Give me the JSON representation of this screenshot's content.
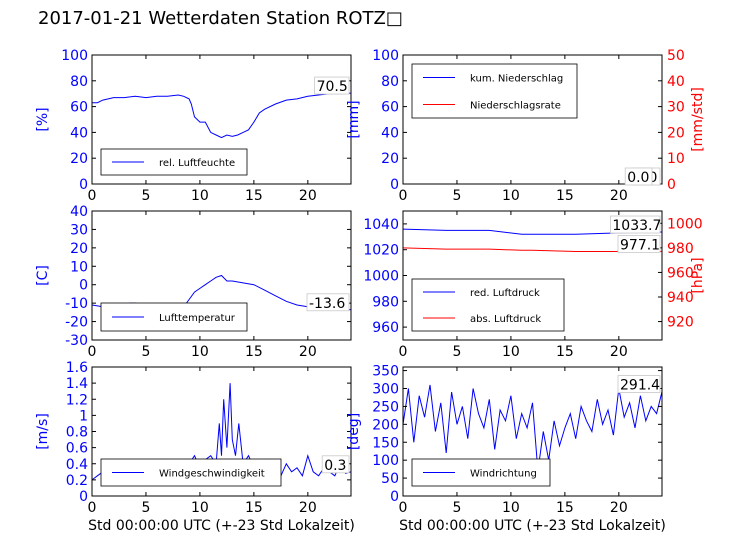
{
  "title": "2017-01-21 Wetterdaten Station ROTZ□",
  "colors": {
    "primary": "#0000ff",
    "secondary": "#ff0000",
    "light": "#8080ff"
  },
  "x_caption": "Std 00:00:00 UTC (+-23 Std Lokalzeit)",
  "chart_data": [
    {
      "id": "humidity",
      "type": "line",
      "xlim": [
        0,
        24
      ],
      "xticks": [
        0,
        5,
        10,
        15,
        20
      ],
      "ylim": [
        0,
        100
      ],
      "yticks": [
        0,
        20,
        40,
        60,
        80,
        100
      ],
      "ylabel": "[%]",
      "legend_position": "lower-left",
      "last_value": "70.5",
      "series": [
        {
          "name": "rel. Luftfeuchte",
          "color": "#0000ff",
          "x": [
            0,
            0.5,
            1,
            2,
            3,
            4,
            5,
            6,
            7,
            8,
            8.5,
            9,
            9.2,
            9.5,
            10,
            10.5,
            11,
            11.5,
            12,
            12.5,
            13,
            13.5,
            14,
            14.5,
            15,
            15.5,
            16,
            17,
            18,
            19,
            20,
            21,
            22,
            23,
            24
          ],
          "y": [
            63,
            63,
            65,
            67,
            67,
            68,
            67,
            68,
            68,
            69,
            68,
            66,
            62,
            52,
            48,
            48,
            40,
            38,
            36,
            38,
            37,
            38,
            40,
            42,
            48,
            55,
            58,
            62,
            65,
            66,
            68,
            69,
            70,
            70,
            70.5
          ]
        }
      ]
    },
    {
      "id": "precipitation",
      "type": "line",
      "xlim": [
        0,
        24
      ],
      "xticks": [
        0,
        5,
        10,
        15,
        20
      ],
      "ylim": [
        0,
        100
      ],
      "yticks": [
        0,
        20,
        40,
        60,
        80,
        100
      ],
      "ylabel": "[mm]",
      "y2lim": [
        0,
        50
      ],
      "y2ticks": [
        0,
        10,
        20,
        30,
        40,
        50
      ],
      "y2label": "[mm/std]",
      "legend_position": "top-left",
      "last_value": "0.0",
      "last_value_2": "0.0",
      "series": [
        {
          "name": "kum. Niederschlag",
          "color": "#0000ff",
          "axis": "left",
          "x": [
            0,
            24
          ],
          "y": [
            0,
            0
          ]
        },
        {
          "name": "Niederschlagsrate",
          "color": "#ff0000",
          "axis": "right",
          "x": [
            0,
            24
          ],
          "y": [
            0,
            0
          ]
        }
      ]
    },
    {
      "id": "temperature",
      "type": "line",
      "xlim": [
        0,
        24
      ],
      "xticks": [
        0,
        5,
        10,
        15,
        20
      ],
      "ylim": [
        -30,
        40
      ],
      "yticks": [
        -30,
        -20,
        -10,
        0,
        10,
        20,
        30,
        40
      ],
      "ylabel": "[C]",
      "legend_position": "lower-left",
      "last_value": "-13.6",
      "series": [
        {
          "name": "Lufttemperatur",
          "color": "#0000ff",
          "x": [
            0,
            1,
            2,
            3,
            3.5,
            4,
            5,
            6,
            7,
            8,
            8.5,
            9,
            9.5,
            10,
            10.5,
            11,
            11.5,
            12,
            12.5,
            13,
            14,
            15,
            16,
            17,
            18,
            19,
            20,
            21,
            22,
            23,
            24
          ],
          "y": [
            -11,
            -12,
            -13,
            -11,
            -10,
            -10,
            -11,
            -12,
            -13,
            -13,
            -12,
            -8,
            -4,
            -2,
            0,
            2,
            4,
            5,
            2,
            2,
            1,
            0,
            -3,
            -6,
            -9,
            -11,
            -12,
            -12,
            -13,
            -13,
            -13.6
          ]
        }
      ]
    },
    {
      "id": "pressure",
      "type": "line",
      "xlim": [
        0,
        24
      ],
      "xticks": [
        0,
        5,
        10,
        15,
        20
      ],
      "ylim": [
        950,
        1050
      ],
      "yticks": [
        960,
        980,
        1000,
        1020,
        1040
      ],
      "y2lim": [
        905,
        1010
      ],
      "y2ticks": [
        920,
        940,
        960,
        980,
        1000
      ],
      "y2label": "[hPa]",
      "legend_position": "lower-left",
      "last_value": "1033.7",
      "last_value_2": "977.1",
      "series": [
        {
          "name": "red. Luftdruck",
          "color": "#0000ff",
          "axis": "left",
          "x": [
            0,
            4,
            8,
            11,
            12,
            16,
            20,
            24
          ],
          "y": [
            1036,
            1035,
            1035,
            1032,
            1032,
            1032,
            1033,
            1033.7
          ]
        },
        {
          "name": "abs. Luftdruck",
          "color": "#ff0000",
          "axis": "right",
          "x": [
            0,
            4,
            8,
            11,
            12,
            16,
            20,
            24
          ],
          "y": [
            980,
            979,
            979,
            978,
            978,
            977,
            977,
            977.1
          ]
        }
      ]
    },
    {
      "id": "windspeed",
      "type": "line",
      "xlim": [
        0,
        24
      ],
      "xticks": [
        0,
        5,
        10,
        15,
        20
      ],
      "ylim": [
        0,
        1.6
      ],
      "yticks": [
        0,
        0.2,
        0.4,
        0.6,
        0.8,
        1.0,
        1.2,
        1.4,
        1.6
      ],
      "ylabel": "[m/s]",
      "legend_position": "lower-left",
      "last_value": "0.3",
      "series": [
        {
          "name": "Windgeschwindigkeit",
          "color": "#0000ff",
          "x": [
            0,
            0.5,
            1,
            1.5,
            2,
            2.5,
            3,
            3.5,
            4,
            4.5,
            5,
            5.5,
            6,
            6.5,
            7,
            7.5,
            8,
            8.5,
            9,
            9.5,
            10,
            10.5,
            11,
            11.5,
            11.8,
            12,
            12.2,
            12.5,
            12.8,
            13,
            13.3,
            13.6,
            14,
            14.5,
            15,
            15.5,
            16,
            16.5,
            17,
            17.5,
            18,
            18.5,
            19,
            19.5,
            20,
            20.5,
            21,
            21.5,
            22,
            22.5,
            23,
            23.5,
            24
          ],
          "y": [
            0.2,
            0.25,
            0.3,
            0.2,
            0.28,
            0.2,
            0.35,
            0.25,
            0.3,
            0.4,
            0.3,
            0.35,
            0.3,
            0.45,
            0.35,
            0.4,
            0.3,
            0.35,
            0.4,
            0.5,
            0.35,
            0.45,
            0.5,
            0.4,
            0.9,
            0.5,
            1.2,
            0.6,
            1.4,
            0.7,
            0.5,
            0.9,
            0.4,
            0.5,
            0.35,
            0.3,
            0.45,
            0.3,
            0.35,
            0.25,
            0.4,
            0.3,
            0.35,
            0.25,
            0.5,
            0.3,
            0.25,
            0.35,
            0.3,
            0.25,
            0.4,
            0.28,
            0.3
          ]
        }
      ]
    },
    {
      "id": "winddirection",
      "type": "line",
      "xlim": [
        0,
        24
      ],
      "xticks": [
        0,
        5,
        10,
        15,
        20
      ],
      "ylim": [
        0,
        360
      ],
      "yticks": [
        0,
        50,
        100,
        150,
        200,
        250,
        300,
        350
      ],
      "ylabel": "[deg]",
      "legend_position": "lower-left",
      "last_value": "291.4",
      "series": [
        {
          "name": "Windrichtung",
          "color": "#0000ff",
          "x": [
            0,
            0.5,
            1,
            1.5,
            2,
            2.5,
            3,
            3.5,
            4,
            4.5,
            5,
            5.5,
            6,
            6.5,
            7,
            7.5,
            8,
            8.5,
            9,
            9.5,
            10,
            10.5,
            11,
            11.5,
            12,
            12.5,
            13,
            13.5,
            14,
            14.5,
            15,
            15.5,
            16,
            16.5,
            17,
            17.5,
            18,
            18.5,
            19,
            19.5,
            20,
            20.5,
            21,
            21.5,
            22,
            22.5,
            23,
            23.5,
            24
          ],
          "y": [
            200,
            300,
            150,
            280,
            220,
            310,
            180,
            260,
            120,
            290,
            200,
            250,
            160,
            300,
            230,
            190,
            270,
            130,
            240,
            210,
            280,
            160,
            230,
            190,
            260,
            70,
            180,
            100,
            210,
            140,
            190,
            230,
            160,
            250,
            210,
            180,
            270,
            200,
            240,
            170,
            300,
            220,
            260,
            190,
            280,
            210,
            250,
            230,
            291.4
          ]
        }
      ]
    }
  ]
}
